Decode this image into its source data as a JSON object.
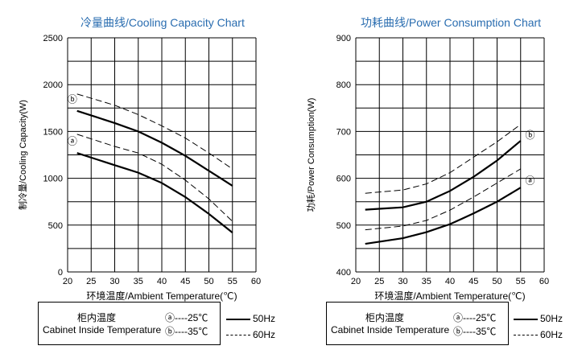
{
  "chart_data": [
    {
      "type": "line",
      "title": "冷量曲线/Cooling Capacity Chart",
      "xlabel": "环境温度/Ambient Temperature(℃)",
      "ylabel": "制冷量/Cooling  Capacity(W)",
      "xlim": [
        20,
        60
      ],
      "ylim": [
        0,
        2500
      ],
      "xticks": [
        20,
        25,
        30,
        35,
        40,
        45,
        50,
        55,
        60
      ],
      "yticks": [
        0,
        500,
        1000,
        1500,
        2000,
        2500
      ],
      "grid": true,
      "x": [
        22,
        30,
        35,
        40,
        45,
        50,
        55
      ],
      "series": [
        {
          "name": "35℃ 60Hz",
          "style": "dashed",
          "values": [
            1900,
            1780,
            1680,
            1560,
            1430,
            1270,
            1100
          ]
        },
        {
          "name": "35℃ 50Hz",
          "style": "solid",
          "values": [
            1720,
            1590,
            1500,
            1380,
            1240,
            1080,
            920
          ]
        },
        {
          "name": "25℃ 60Hz",
          "style": "dashed",
          "values": [
            1470,
            1340,
            1270,
            1150,
            980,
            780,
            540
          ]
        },
        {
          "name": "25℃ 50Hz",
          "style": "solid",
          "values": [
            1270,
            1140,
            1060,
            950,
            800,
            620,
            420
          ]
        }
      ],
      "markers": [
        {
          "label": "ⓑ",
          "x": 21,
          "y": 1810
        },
        {
          "label": "ⓐ",
          "x": 21,
          "y": 1360
        }
      ]
    },
    {
      "type": "line",
      "title": "功耗曲线/Power Consumption Chart",
      "xlabel": "环境温度/Ambient Temperature(℃)",
      "ylabel": "功耗/Power Consumption(W)",
      "xlim": [
        20,
        60
      ],
      "ylim": [
        400,
        900
      ],
      "xticks": [
        20,
        25,
        30,
        35,
        40,
        45,
        50,
        55,
        60
      ],
      "yticks": [
        400,
        500,
        600,
        700,
        800,
        900
      ],
      "grid": true,
      "x": [
        22,
        30,
        35,
        40,
        45,
        50,
        55
      ],
      "series": [
        {
          "name": "35℃ 60Hz",
          "style": "dashed",
          "values": [
            568,
            575,
            588,
            612,
            645,
            678,
            715
          ]
        },
        {
          "name": "35℃ 50Hz",
          "style": "solid",
          "values": [
            533,
            538,
            550,
            573,
            603,
            638,
            680
          ]
        },
        {
          "name": "25℃ 60Hz",
          "style": "dashed",
          "values": [
            490,
            498,
            510,
            532,
            560,
            590,
            620
          ]
        },
        {
          "name": "25℃ 50Hz",
          "style": "solid",
          "values": [
            460,
            472,
            485,
            502,
            525,
            550,
            580
          ]
        }
      ],
      "markers": [
        {
          "label": "ⓑ",
          "x": 57,
          "y": 685
        },
        {
          "label": "ⓐ",
          "x": 57,
          "y": 588
        }
      ]
    }
  ],
  "legend": {
    "cn": "柜内温度",
    "en": "Cabinet Inside Temperature",
    "a": "ⓐ----25℃",
    "b": "ⓑ----35℃",
    "solid": "50Hz",
    "dashed": "60Hz"
  }
}
